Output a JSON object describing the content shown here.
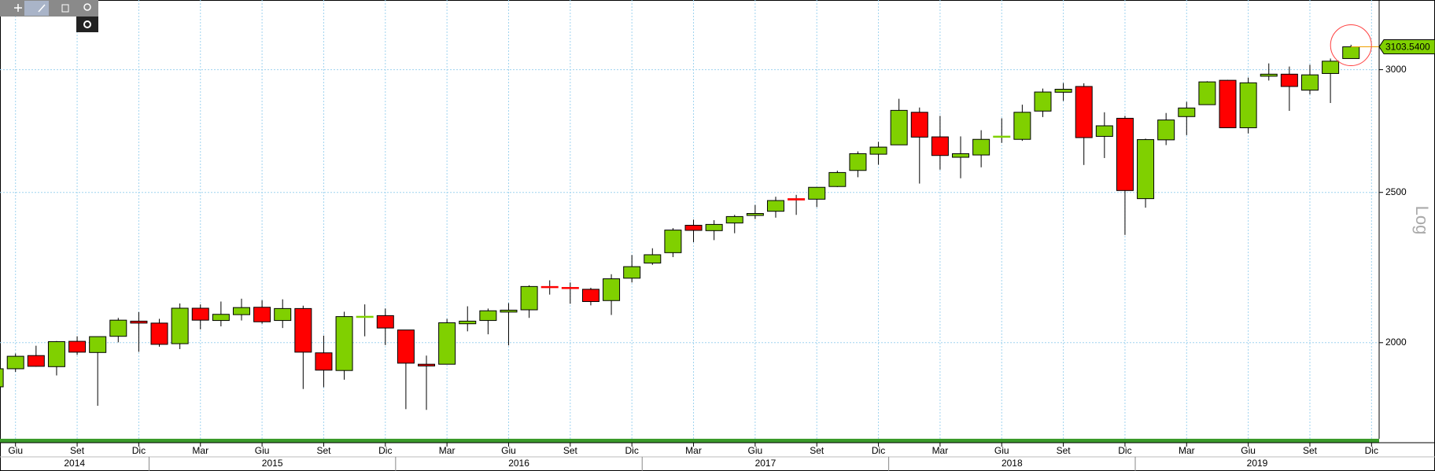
{
  "chart_data": {
    "type": "candlestick",
    "log_scale": true,
    "grid": true,
    "y_axis_label": "Log",
    "up_color": "#80d000",
    "down_color": "#ff0000",
    "ylim": [
      1734,
      3327
    ],
    "yticks": [
      2000,
      2500,
      3000
    ],
    "xticks": [
      {
        "value": "2014-06",
        "label": "Giu"
      },
      {
        "value": "2014-09",
        "label": "Set"
      },
      {
        "value": "2014-12",
        "label": "Dic"
      },
      {
        "value": "2015-03",
        "label": "Mar"
      },
      {
        "value": "2015-06",
        "label": "Giu"
      },
      {
        "value": "2015-09",
        "label": "Set"
      },
      {
        "value": "2015-12",
        "label": "Dic"
      },
      {
        "value": "2016-03",
        "label": "Mar"
      },
      {
        "value": "2016-06",
        "label": "Giu"
      },
      {
        "value": "2016-09",
        "label": "Set"
      },
      {
        "value": "2016-12",
        "label": "Dic"
      },
      {
        "value": "2017-03",
        "label": "Mar"
      },
      {
        "value": "2017-06",
        "label": "Giu"
      },
      {
        "value": "2017-09",
        "label": "Set"
      },
      {
        "value": "2017-12",
        "label": "Dic"
      },
      {
        "value": "2018-03",
        "label": "Mar"
      },
      {
        "value": "2018-06",
        "label": "Giu"
      },
      {
        "value": "2018-09",
        "label": "Set"
      },
      {
        "value": "2018-12",
        "label": "Dic"
      },
      {
        "value": "2019-03",
        "label": "Mar"
      },
      {
        "value": "2019-06",
        "label": "Giu"
      },
      {
        "value": "2019-09",
        "label": "Set"
      },
      {
        "value": "2019-12",
        "label": "Dic"
      }
    ],
    "years": [
      "2014",
      "2015",
      "2016",
      "2017",
      "2018",
      "2019"
    ],
    "last_price": {
      "value": 3103.54,
      "label": "3103.5400"
    },
    "x": [
      "2014-05",
      "2014-06",
      "2014-07",
      "2014-08",
      "2014-09",
      "2014-10",
      "2014-11",
      "2014-12",
      "2015-01",
      "2015-02",
      "2015-03",
      "2015-04",
      "2015-05",
      "2015-06",
      "2015-07",
      "2015-08",
      "2015-09",
      "2015-10",
      "2015-11",
      "2015-12",
      "2016-01",
      "2016-02",
      "2016-03",
      "2016-04",
      "2016-05",
      "2016-06",
      "2016-07",
      "2016-08",
      "2016-09",
      "2016-10",
      "2016-11",
      "2016-12",
      "2017-01",
      "2017-02",
      "2017-03",
      "2017-04",
      "2017-05",
      "2017-06",
      "2017-07",
      "2017-08",
      "2017-09",
      "2017-10",
      "2017-11",
      "2017-12",
      "2018-01",
      "2018-02",
      "2018-03",
      "2018-04",
      "2018-05",
      "2018-06",
      "2018-07",
      "2018-08",
      "2018-09",
      "2018-10",
      "2018-11",
      "2018-12",
      "2019-01",
      "2019-02",
      "2019-03",
      "2019-04",
      "2019-05",
      "2019-06",
      "2019-07",
      "2019-08",
      "2019-09",
      "2019-10",
      "2019-11"
    ],
    "open": [
      1873,
      1924,
      1962,
      1930,
      2004,
      1971,
      2019,
      2065,
      2059,
      1997,
      2105,
      2067,
      2085,
      2108,
      2067,
      2104,
      1970,
      1919,
      2080,
      2082,
      2038,
      1937,
      1937,
      2057,
      2067,
      2093,
      2100,
      2174,
      2171,
      2165,
      2129,
      2201,
      2251,
      2286,
      2381,
      2362,
      2389,
      2416,
      2431,
      2477,
      2475,
      2522,
      2583,
      2646,
      2683,
      2816,
      2715,
      2634,
      2643,
      2718,
      2705,
      2821,
      2901,
      2926,
      2717,
      2791,
      2477,
      2703,
      2798,
      2848,
      2953,
      2752,
      2971,
      2980,
      2910,
      2983,
      3050
    ],
    "high": [
      1924,
      1968,
      1991,
      2005,
      2019,
      2018,
      2075,
      2093,
      2072,
      2120,
      2117,
      2126,
      2135,
      2130,
      2133,
      2113,
      2021,
      2094,
      2117,
      2104,
      2038,
      1962,
      2072,
      2111,
      2104,
      2121,
      2178,
      2194,
      2187,
      2170,
      2214,
      2278,
      2301,
      2371,
      2401,
      2399,
      2418,
      2454,
      2484,
      2491,
      2519,
      2582,
      2657,
      2695,
      2873,
      2836,
      2801,
      2717,
      2742,
      2791,
      2848,
      2917,
      2941,
      2940,
      2816,
      2801,
      2708,
      2813,
      2860,
      2949,
      2955,
      2965,
      3028,
      3014,
      3022,
      3050,
      3113
    ],
    "low": [
      1859,
      1915,
      1930,
      1905,
      1964,
      1821,
      2001,
      1973,
      1988,
      1981,
      2040,
      2049,
      2067,
      2057,
      2044,
      1867,
      1872,
      1893,
      2019,
      1993,
      1812,
      1810,
      1937,
      2034,
      2025,
      1992,
      2075,
      2148,
      2119,
      2114,
      2084,
      2187,
      2245,
      2271,
      2322,
      2329,
      2353,
      2403,
      2408,
      2418,
      2446,
      2520,
      2557,
      2605,
      2683,
      2533,
      2586,
      2553,
      2595,
      2691,
      2699,
      2796,
      2864,
      2604,
      2631,
      2347,
      2444,
      2682,
      2722,
      2848,
      2751,
      2729,
      2952,
      2822,
      2892,
      2855,
      3050
    ],
    "close": [
      1924,
      1960,
      1931,
      2003,
      1972,
      2018,
      2068,
      2059,
      1995,
      2105,
      2068,
      2086,
      2107,
      2063,
      2104,
      1972,
      1920,
      2079,
      2080,
      2044,
      1940,
      1932,
      2060,
      2065,
      2097,
      2099,
      2174,
      2171,
      2168,
      2126,
      2199,
      2239,
      2279,
      2364,
      2363,
      2384,
      2412,
      2423,
      2470,
      2472,
      2519,
      2575,
      2648,
      2674,
      2824,
      2714,
      2641,
      2648,
      2705,
      2718,
      2816,
      2902,
      2914,
      2712,
      2760,
      2507,
      2704,
      2784,
      2834,
      2946,
      2752,
      2942,
      2980,
      2926,
      2977,
      3038,
      3103.54
    ]
  }
}
